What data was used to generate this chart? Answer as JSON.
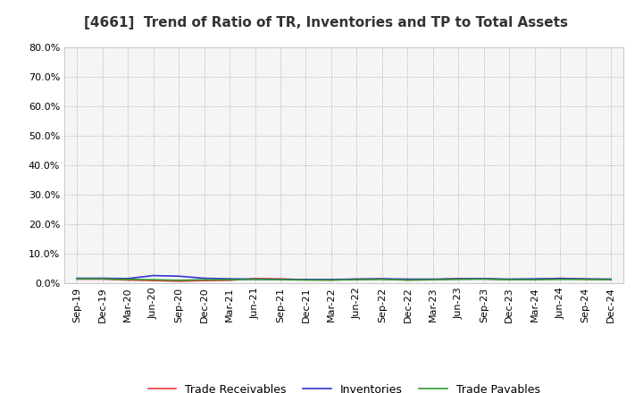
{
  "title": "[4661]  Trend of Ratio of TR, Inventories and TP to Total Assets",
  "x_labels": [
    "Sep-19",
    "Dec-19",
    "Mar-20",
    "Jun-20",
    "Sep-20",
    "Dec-20",
    "Mar-21",
    "Jun-21",
    "Sep-21",
    "Dec-21",
    "Mar-22",
    "Jun-22",
    "Sep-22",
    "Dec-22",
    "Mar-23",
    "Jun-23",
    "Sep-23",
    "Dec-23",
    "Mar-24",
    "Jun-24",
    "Sep-24",
    "Dec-24"
  ],
  "trade_receivables": [
    0.013,
    0.013,
    0.01,
    0.008,
    0.006,
    0.008,
    0.009,
    0.015,
    0.014,
    0.011,
    0.01,
    0.013,
    0.014,
    0.01,
    0.011,
    0.015,
    0.014,
    0.011,
    0.012,
    0.016,
    0.013,
    0.011
  ],
  "inventories": [
    0.016,
    0.016,
    0.015,
    0.025,
    0.023,
    0.016,
    0.014,
    0.013,
    0.012,
    0.012,
    0.012,
    0.013,
    0.014,
    0.013,
    0.013,
    0.014,
    0.015,
    0.013,
    0.014,
    0.015,
    0.014,
    0.013
  ],
  "trade_payables": [
    0.014,
    0.014,
    0.012,
    0.011,
    0.009,
    0.011,
    0.011,
    0.012,
    0.011,
    0.01,
    0.01,
    0.011,
    0.012,
    0.01,
    0.011,
    0.012,
    0.013,
    0.011,
    0.011,
    0.012,
    0.012,
    0.011
  ],
  "tr_color": "#e8373c",
  "inv_color": "#3333cc",
  "tp_color": "#339933",
  "ylim": [
    0.0,
    0.8
  ],
  "yticks": [
    0.0,
    0.1,
    0.2,
    0.3,
    0.4,
    0.5,
    0.6,
    0.7,
    0.8
  ],
  "bg_color": "#ffffff",
  "plot_bg_color": "#f5f5f5",
  "grid_color": "#aaaaaa",
  "legend_labels": [
    "Trade Receivables",
    "Inventories",
    "Trade Payables"
  ],
  "title_fontsize": 11,
  "tick_fontsize": 8,
  "legend_fontsize": 9
}
